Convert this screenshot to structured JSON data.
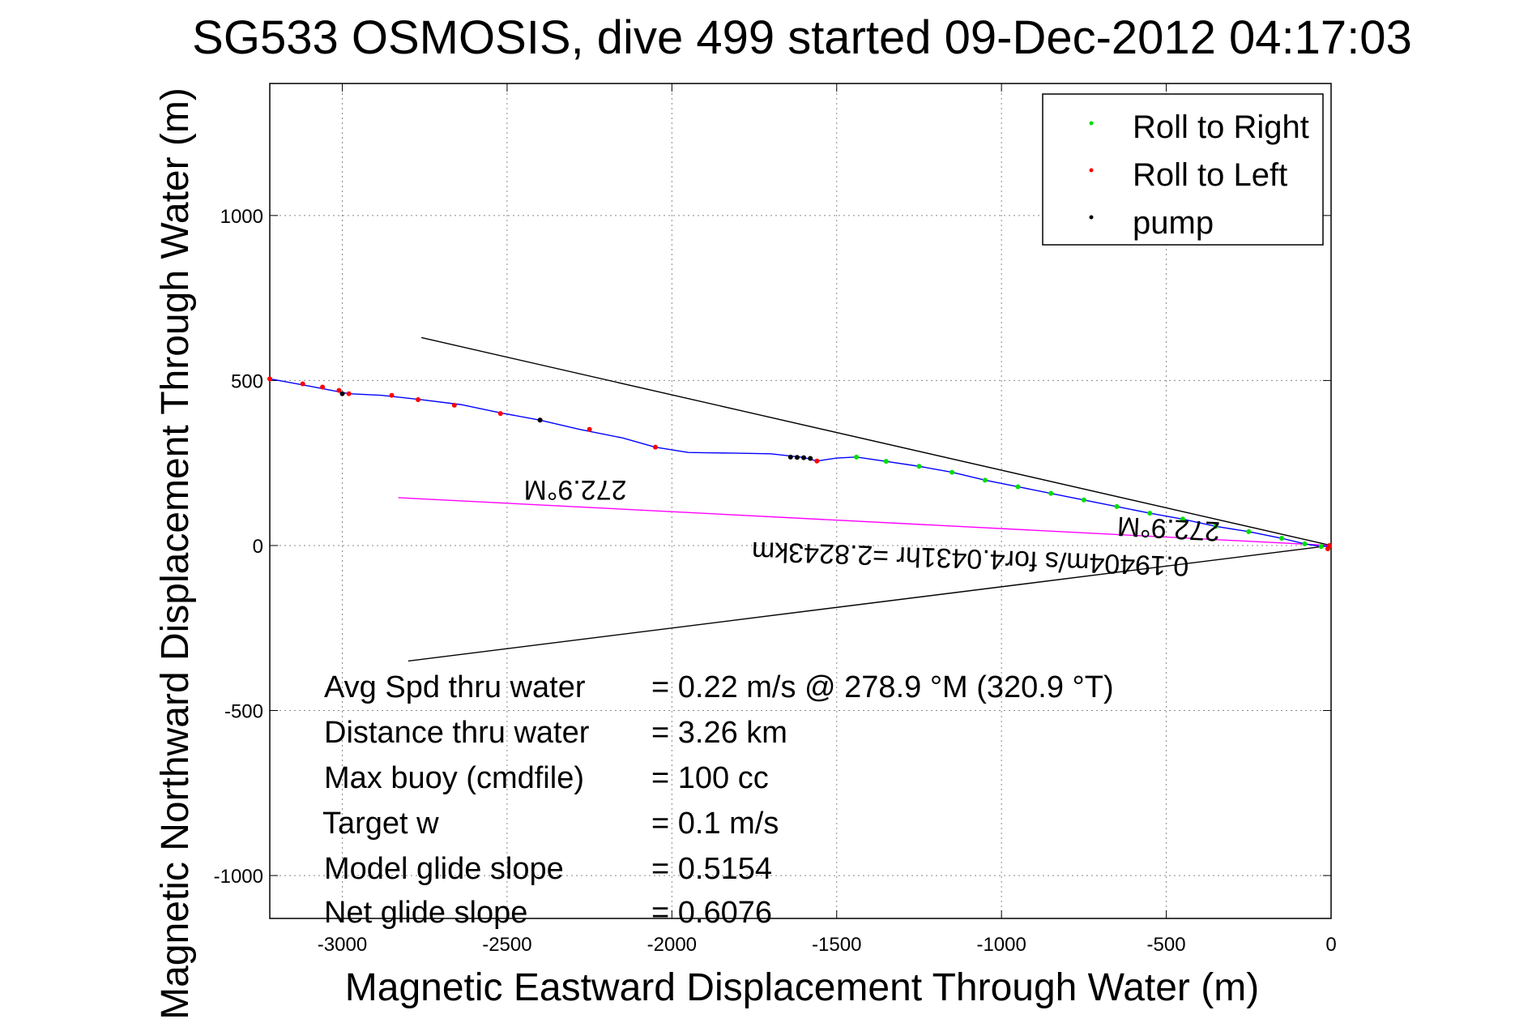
{
  "chart_data": {
    "type": "line",
    "title": "SG533 OSMOSIS, dive 499 started 09-Dec-2012 04:17:03",
    "xlabel": "Magnetic Eastward Displacement Through Water (m)",
    "ylabel": "Magnetic Northward Displacement Through Water (m)",
    "xlim": [
      -3220,
      0
    ],
    "ylim": [
      -1130,
      1400
    ],
    "x_ticks": [
      -3000,
      -2500,
      -2000,
      -1500,
      -1000,
      -500,
      0
    ],
    "y_ticks": [
      -1000,
      -500,
      0,
      500,
      1000
    ],
    "x_tick_labels": [
      "-3000",
      "-2500",
      "-2000",
      "-1500",
      "-1000",
      "-500",
      "0"
    ],
    "y_tick_labels": [
      "-1000",
      "-500",
      "0",
      "500",
      "1000"
    ],
    "grid": true,
    "legend_position": "top-right",
    "legend": [
      {
        "label": "Roll to Right",
        "color": "#00dd00"
      },
      {
        "label": "Roll to Left",
        "color": "#ff0000"
      },
      {
        "label": "pump",
        "color": "#000000"
      }
    ],
    "series": [
      {
        "color": "#0000ff",
        "x": [
          -3220,
          -3100,
          -2980,
          -2880,
          -2760,
          -2640,
          -2520,
          -2400,
          -2280,
          -2150,
          -2050,
          -1950,
          -1820,
          -1700,
          -1600,
          -1560,
          -1500,
          -1440,
          -1350,
          -1250,
          -1150,
          -1050,
          -950,
          -850,
          -750,
          -650,
          -550,
          -450,
          -350,
          -250,
          -150,
          -80,
          -30,
          0
        ],
        "y": [
          505,
          483,
          460,
          455,
          442,
          427,
          402,
          380,
          352,
          326,
          298,
          282,
          280,
          278,
          267,
          256,
          265,
          268,
          255,
          240,
          222,
          198,
          178,
          158,
          138,
          118,
          98,
          80,
          58,
          42,
          22,
          5,
          -3,
          0
        ]
      },
      {
        "name": "Roll to Right",
        "color": "#00dd00",
        "x": [
          -1440,
          -1350,
          -1250,
          -1150,
          -1050,
          -950,
          -850,
          -750,
          -650,
          -550,
          -450,
          -350,
          -250,
          -150,
          -80,
          -30
        ],
        "y": [
          268,
          255,
          240,
          222,
          198,
          178,
          158,
          138,
          118,
          98,
          80,
          58,
          42,
          22,
          5,
          -3
        ]
      },
      {
        "name": "Roll to Left",
        "color": "#ff0000",
        "x": [
          -3220,
          -3120,
          -3060,
          -3010,
          -2980,
          -2850,
          -2770,
          -2660,
          -2520,
          -2400,
          -2250,
          -2050,
          -1560,
          -10,
          -5
        ],
        "y": [
          505,
          490,
          480,
          470,
          460,
          455,
          442,
          425,
          400,
          380,
          352,
          298,
          256,
          -10,
          0
        ]
      },
      {
        "name": "pump",
        "color": "#000000",
        "x": [
          -3000,
          -2400,
          -1640,
          -1620,
          -1600,
          -1580
        ],
        "y": [
          460,
          380,
          268,
          267,
          266,
          264
        ]
      }
    ],
    "reference_lines": [
      {
        "color": "#000000",
        "x": [
          -2760,
          0
        ],
        "y": [
          630,
          0
        ]
      },
      {
        "color": "#000000",
        "x": [
          -2800,
          0
        ],
        "y": [
          -350,
          0
        ]
      },
      {
        "color": "#ff00ff",
        "x": [
          -2830,
          0
        ],
        "y": [
          145,
          0
        ]
      }
    ],
    "heading_labels": [
      "272.9°M",
      "272.9°M"
    ],
    "current_label": "0.19404m/s for4.0431hr =2.8243km",
    "stats": [
      {
        "label": "Avg Spd thru water",
        "value": "=  0.22 m/s @ 278.9 °M (320.9 °T)"
      },
      {
        "label": "Distance thru water",
        "value": "=  3.26 km"
      },
      {
        "label": "Max buoy (cmdfile)",
        "value": "= 100 cc"
      },
      {
        "label": "Target w",
        "value": "= 0.1 m/s"
      },
      {
        "label": "Model glide slope",
        "value": "= 0.5154"
      },
      {
        "label": "Net glide slope",
        "value": "= 0.6076"
      }
    ]
  }
}
